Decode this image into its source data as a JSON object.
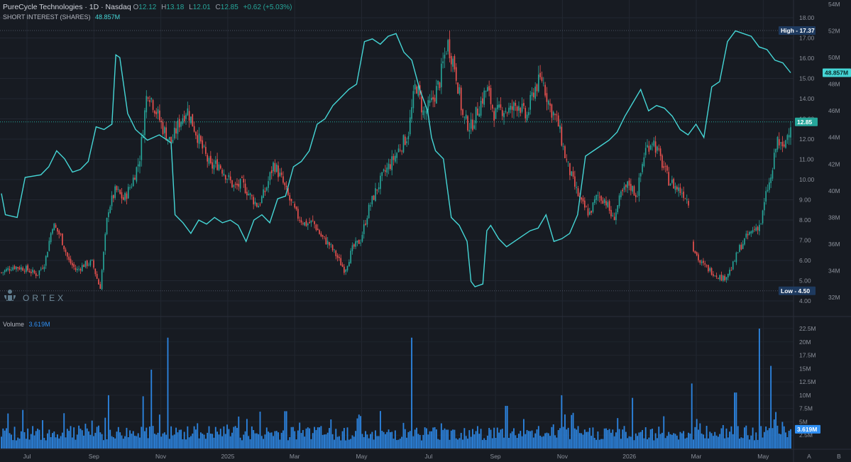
{
  "header": {
    "title": "PureCycle Technologies · 1D · Nasdaq",
    "ohlc": [
      {
        "label": "O",
        "value": "12.12"
      },
      {
        "label": "H",
        "value": "13.18"
      },
      {
        "label": "L",
        "value": "12.01"
      },
      {
        "label": "C",
        "value": "12.85"
      }
    ],
    "change": "+0.62 (+5.03%)",
    "short_interest_label": "SHORT INTEREST (SHARES)",
    "short_interest_value": "48.857M",
    "volume_label": "Volume",
    "volume_value": "3.619M"
  },
  "logo_text": "ORTEX",
  "colors": {
    "background": "#171b22",
    "up": "#26a69a",
    "down": "#ef5350",
    "short_interest_line": "#45d6d6",
    "volume": "#2f8ff3",
    "high_low_tag": "#1e3a5f"
  },
  "corner_buttons": [
    "A",
    "B"
  ],
  "chart_data": {
    "type": "line",
    "x_ticks": [
      "Jul",
      "Sep",
      "Nov",
      "2025",
      "Mar",
      "May",
      "Jul",
      "Sep",
      "Nov",
      "2026",
      "Mar",
      "May"
    ],
    "price_axis": {
      "ylim": [
        4.0,
        18.0
      ],
      "ticks": [
        "18.00",
        "17.00",
        "16.00",
        "15.00",
        "14.00",
        "13.00",
        "12.00",
        "11.00",
        "10.00",
        "9.00",
        "8.00",
        "7.00",
        "6.00",
        "5.00",
        "4.00"
      ]
    },
    "short_interest_axis": {
      "ylim": [
        32,
        54
      ],
      "ticks": [
        "54M",
        "52M",
        "50M",
        "48M",
        "46M",
        "44M",
        "42M",
        "40M",
        "38M",
        "36M",
        "34M",
        "32M"
      ]
    },
    "volume_axis": {
      "ylim": [
        0,
        22.5
      ],
      "ticks": [
        "22.5M",
        "20M",
        "17.5M",
        "15M",
        "12.5M",
        "10M",
        "7.5M",
        "5M",
        "2.5M"
      ]
    },
    "markers": {
      "high": {
        "label": "High",
        "value": 17.37
      },
      "low": {
        "label": "Low",
        "value": 4.5
      },
      "last_price": {
        "value": 12.85,
        "label": "12.85"
      },
      "last_short_interest": {
        "value": 48.857,
        "label": "48.857M"
      },
      "last_volume": {
        "value": 3.619,
        "label": "3.619M"
      }
    },
    "price_series": [
      {
        "x": 0.0,
        "y": 5.4
      },
      {
        "x": 0.015,
        "y": 5.7
      },
      {
        "x": 0.03,
        "y": 5.6
      },
      {
        "x": 0.045,
        "y": 5.3
      },
      {
        "x": 0.055,
        "y": 5.9
      },
      {
        "x": 0.065,
        "y": 7.8
      },
      {
        "x": 0.075,
        "y": 7.2
      },
      {
        "x": 0.085,
        "y": 6.0
      },
      {
        "x": 0.095,
        "y": 5.5
      },
      {
        "x": 0.105,
        "y": 5.8
      },
      {
        "x": 0.115,
        "y": 5.9
      },
      {
        "x": 0.125,
        "y": 4.6
      },
      {
        "x": 0.135,
        "y": 8.5
      },
      {
        "x": 0.145,
        "y": 9.5
      },
      {
        "x": 0.155,
        "y": 9.0
      },
      {
        "x": 0.165,
        "y": 9.8
      },
      {
        "x": 0.175,
        "y": 11.0
      },
      {
        "x": 0.185,
        "y": 14.5
      },
      {
        "x": 0.195,
        "y": 13.5
      },
      {
        "x": 0.205,
        "y": 12.5
      },
      {
        "x": 0.215,
        "y": 11.8
      },
      {
        "x": 0.225,
        "y": 12.8
      },
      {
        "x": 0.235,
        "y": 13.5
      },
      {
        "x": 0.245,
        "y": 12.5
      },
      {
        "x": 0.255,
        "y": 11.5
      },
      {
        "x": 0.265,
        "y": 10.6
      },
      {
        "x": 0.275,
        "y": 10.8
      },
      {
        "x": 0.285,
        "y": 10.2
      },
      {
        "x": 0.295,
        "y": 9.6
      },
      {
        "x": 0.305,
        "y": 9.8
      },
      {
        "x": 0.315,
        "y": 9.2
      },
      {
        "x": 0.325,
        "y": 8.7
      },
      {
        "x": 0.335,
        "y": 9.5
      },
      {
        "x": 0.345,
        "y": 10.8
      },
      {
        "x": 0.355,
        "y": 10.0
      },
      {
        "x": 0.365,
        "y": 9.0
      },
      {
        "x": 0.375,
        "y": 8.2
      },
      {
        "x": 0.385,
        "y": 7.8
      },
      {
        "x": 0.395,
        "y": 7.9
      },
      {
        "x": 0.405,
        "y": 7.2
      },
      {
        "x": 0.415,
        "y": 6.8
      },
      {
        "x": 0.425,
        "y": 6.2
      },
      {
        "x": 0.435,
        "y": 5.5
      },
      {
        "x": 0.445,
        "y": 6.6
      },
      {
        "x": 0.455,
        "y": 7.0
      },
      {
        "x": 0.465,
        "y": 8.5
      },
      {
        "x": 0.475,
        "y": 9.5
      },
      {
        "x": 0.485,
        "y": 10.3
      },
      {
        "x": 0.495,
        "y": 10.9
      },
      {
        "x": 0.505,
        "y": 11.6
      },
      {
        "x": 0.515,
        "y": 12.2
      },
      {
        "x": 0.525,
        "y": 14.8
      },
      {
        "x": 0.535,
        "y": 13.2
      },
      {
        "x": 0.545,
        "y": 13.8
      },
      {
        "x": 0.555,
        "y": 14.8
      },
      {
        "x": 0.565,
        "y": 16.8
      },
      {
        "x": 0.575,
        "y": 15.5
      },
      {
        "x": 0.585,
        "y": 13.0
      },
      {
        "x": 0.595,
        "y": 12.6
      },
      {
        "x": 0.605,
        "y": 13.6
      },
      {
        "x": 0.615,
        "y": 14.5
      },
      {
        "x": 0.625,
        "y": 13.2
      },
      {
        "x": 0.635,
        "y": 13.5
      },
      {
        "x": 0.645,
        "y": 13.4
      },
      {
        "x": 0.655,
        "y": 13.8
      },
      {
        "x": 0.665,
        "y": 13.0
      },
      {
        "x": 0.675,
        "y": 14.5
      },
      {
        "x": 0.685,
        "y": 15.0
      },
      {
        "x": 0.695,
        "y": 13.6
      },
      {
        "x": 0.705,
        "y": 12.8
      },
      {
        "x": 0.715,
        "y": 11.0
      },
      {
        "x": 0.725,
        "y": 9.8
      },
      {
        "x": 0.735,
        "y": 8.8
      },
      {
        "x": 0.745,
        "y": 8.3
      },
      {
        "x": 0.755,
        "y": 9.2
      },
      {
        "x": 0.765,
        "y": 9.0
      },
      {
        "x": 0.775,
        "y": 8.0
      },
      {
        "x": 0.785,
        "y": 9.2
      },
      {
        "x": 0.795,
        "y": 9.8
      },
      {
        "x": 0.805,
        "y": 9.2
      },
      {
        "x": 0.815,
        "y": 11.4
      },
      {
        "x": 0.825,
        "y": 12.0
      },
      {
        "x": 0.835,
        "y": 11.0
      },
      {
        "x": 0.845,
        "y": 10.0
      },
      {
        "x": 0.855,
        "y": 9.6
      },
      {
        "x": 0.865,
        "y": 9.3
      },
      {
        "x": 0.872,
        "y": 8.8
      },
      {
        "x": 0.875,
        "y": 6.8
      },
      {
        "x": 0.885,
        "y": 5.9
      },
      {
        "x": 0.895,
        "y": 5.6
      },
      {
        "x": 0.905,
        "y": 5.3
      },
      {
        "x": 0.915,
        "y": 5.1
      },
      {
        "x": 0.925,
        "y": 5.6
      },
      {
        "x": 0.935,
        "y": 6.6
      },
      {
        "x": 0.945,
        "y": 7.2
      },
      {
        "x": 0.955,
        "y": 7.6
      },
      {
        "x": 0.962,
        "y": 7.8
      },
      {
        "x": 0.97,
        "y": 9.5
      },
      {
        "x": 0.975,
        "y": 10.0
      },
      {
        "x": 0.983,
        "y": 12.0
      },
      {
        "x": 0.99,
        "y": 11.4
      },
      {
        "x": 1.0,
        "y": 12.85
      }
    ],
    "short_interest_series": [
      {
        "x": 0.0,
        "y": 39.8
      },
      {
        "x": 0.005,
        "y": 38.2
      },
      {
        "x": 0.02,
        "y": 38.0
      },
      {
        "x": 0.03,
        "y": 41.0
      },
      {
        "x": 0.05,
        "y": 41.2
      },
      {
        "x": 0.06,
        "y": 41.8
      },
      {
        "x": 0.07,
        "y": 43.0
      },
      {
        "x": 0.08,
        "y": 42.4
      },
      {
        "x": 0.09,
        "y": 41.4
      },
      {
        "x": 0.1,
        "y": 41.6
      },
      {
        "x": 0.11,
        "y": 42.2
      },
      {
        "x": 0.12,
        "y": 44.8
      },
      {
        "x": 0.13,
        "y": 44.6
      },
      {
        "x": 0.14,
        "y": 45.0
      },
      {
        "x": 0.145,
        "y": 50.2
      },
      {
        "x": 0.15,
        "y": 50.0
      },
      {
        "x": 0.16,
        "y": 45.8
      },
      {
        "x": 0.17,
        "y": 44.6
      },
      {
        "x": 0.185,
        "y": 43.8
      },
      {
        "x": 0.2,
        "y": 44.2
      },
      {
        "x": 0.215,
        "y": 43.6
      },
      {
        "x": 0.22,
        "y": 38.2
      },
      {
        "x": 0.23,
        "y": 37.6
      },
      {
        "x": 0.24,
        "y": 36.8
      },
      {
        "x": 0.25,
        "y": 37.8
      },
      {
        "x": 0.26,
        "y": 37.5
      },
      {
        "x": 0.27,
        "y": 38.0
      },
      {
        "x": 0.28,
        "y": 37.6
      },
      {
        "x": 0.29,
        "y": 37.8
      },
      {
        "x": 0.3,
        "y": 37.4
      },
      {
        "x": 0.31,
        "y": 36.2
      },
      {
        "x": 0.32,
        "y": 37.8
      },
      {
        "x": 0.33,
        "y": 38.2
      },
      {
        "x": 0.34,
        "y": 37.6
      },
      {
        "x": 0.35,
        "y": 39.4
      },
      {
        "x": 0.36,
        "y": 39.6
      },
      {
        "x": 0.37,
        "y": 41.8
      },
      {
        "x": 0.38,
        "y": 42.2
      },
      {
        "x": 0.39,
        "y": 43.0
      },
      {
        "x": 0.4,
        "y": 45.0
      },
      {
        "x": 0.41,
        "y": 45.4
      },
      {
        "x": 0.42,
        "y": 46.4
      },
      {
        "x": 0.43,
        "y": 47.0
      },
      {
        "x": 0.44,
        "y": 47.6
      },
      {
        "x": 0.45,
        "y": 48.0
      },
      {
        "x": 0.46,
        "y": 51.2
      },
      {
        "x": 0.47,
        "y": 51.4
      },
      {
        "x": 0.48,
        "y": 51.0
      },
      {
        "x": 0.49,
        "y": 51.6
      },
      {
        "x": 0.5,
        "y": 51.8
      },
      {
        "x": 0.51,
        "y": 50.4
      },
      {
        "x": 0.52,
        "y": 49.8
      },
      {
        "x": 0.53,
        "y": 47.6
      },
      {
        "x": 0.54,
        "y": 46.0
      },
      {
        "x": 0.545,
        "y": 44.0
      },
      {
        "x": 0.55,
        "y": 43.0
      },
      {
        "x": 0.56,
        "y": 42.4
      },
      {
        "x": 0.57,
        "y": 38.0
      },
      {
        "x": 0.58,
        "y": 37.4
      },
      {
        "x": 0.59,
        "y": 36.2
      },
      {
        "x": 0.595,
        "y": 33.2
      },
      {
        "x": 0.6,
        "y": 32.8
      },
      {
        "x": 0.61,
        "y": 33.0
      },
      {
        "x": 0.615,
        "y": 37.0
      },
      {
        "x": 0.62,
        "y": 37.4
      },
      {
        "x": 0.63,
        "y": 36.4
      },
      {
        "x": 0.64,
        "y": 35.8
      },
      {
        "x": 0.65,
        "y": 36.2
      },
      {
        "x": 0.66,
        "y": 36.6
      },
      {
        "x": 0.67,
        "y": 37.0
      },
      {
        "x": 0.68,
        "y": 37.2
      },
      {
        "x": 0.69,
        "y": 38.2
      },
      {
        "x": 0.7,
        "y": 36.2
      },
      {
        "x": 0.71,
        "y": 36.4
      },
      {
        "x": 0.72,
        "y": 36.8
      },
      {
        "x": 0.73,
        "y": 38.2
      },
      {
        "x": 0.74,
        "y": 42.6
      },
      {
        "x": 0.75,
        "y": 43.0
      },
      {
        "x": 0.76,
        "y": 43.4
      },
      {
        "x": 0.77,
        "y": 43.8
      },
      {
        "x": 0.78,
        "y": 44.4
      },
      {
        "x": 0.79,
        "y": 45.6
      },
      {
        "x": 0.8,
        "y": 46.6
      },
      {
        "x": 0.81,
        "y": 47.6
      },
      {
        "x": 0.82,
        "y": 46.0
      },
      {
        "x": 0.83,
        "y": 46.4
      },
      {
        "x": 0.84,
        "y": 46.2
      },
      {
        "x": 0.85,
        "y": 45.6
      },
      {
        "x": 0.86,
        "y": 44.6
      },
      {
        "x": 0.87,
        "y": 44.2
      },
      {
        "x": 0.88,
        "y": 45.0
      },
      {
        "x": 0.89,
        "y": 44.0
      },
      {
        "x": 0.9,
        "y": 47.8
      },
      {
        "x": 0.91,
        "y": 48.2
      },
      {
        "x": 0.92,
        "y": 51.2
      },
      {
        "x": 0.93,
        "y": 52.0
      },
      {
        "x": 0.94,
        "y": 51.8
      },
      {
        "x": 0.95,
        "y": 51.6
      },
      {
        "x": 0.96,
        "y": 50.8
      },
      {
        "x": 0.97,
        "y": 50.6
      },
      {
        "x": 0.98,
        "y": 49.8
      },
      {
        "x": 0.99,
        "y": 49.6
      },
      {
        "x": 1.0,
        "y": 48.857
      }
    ],
    "volume_series": []
  }
}
